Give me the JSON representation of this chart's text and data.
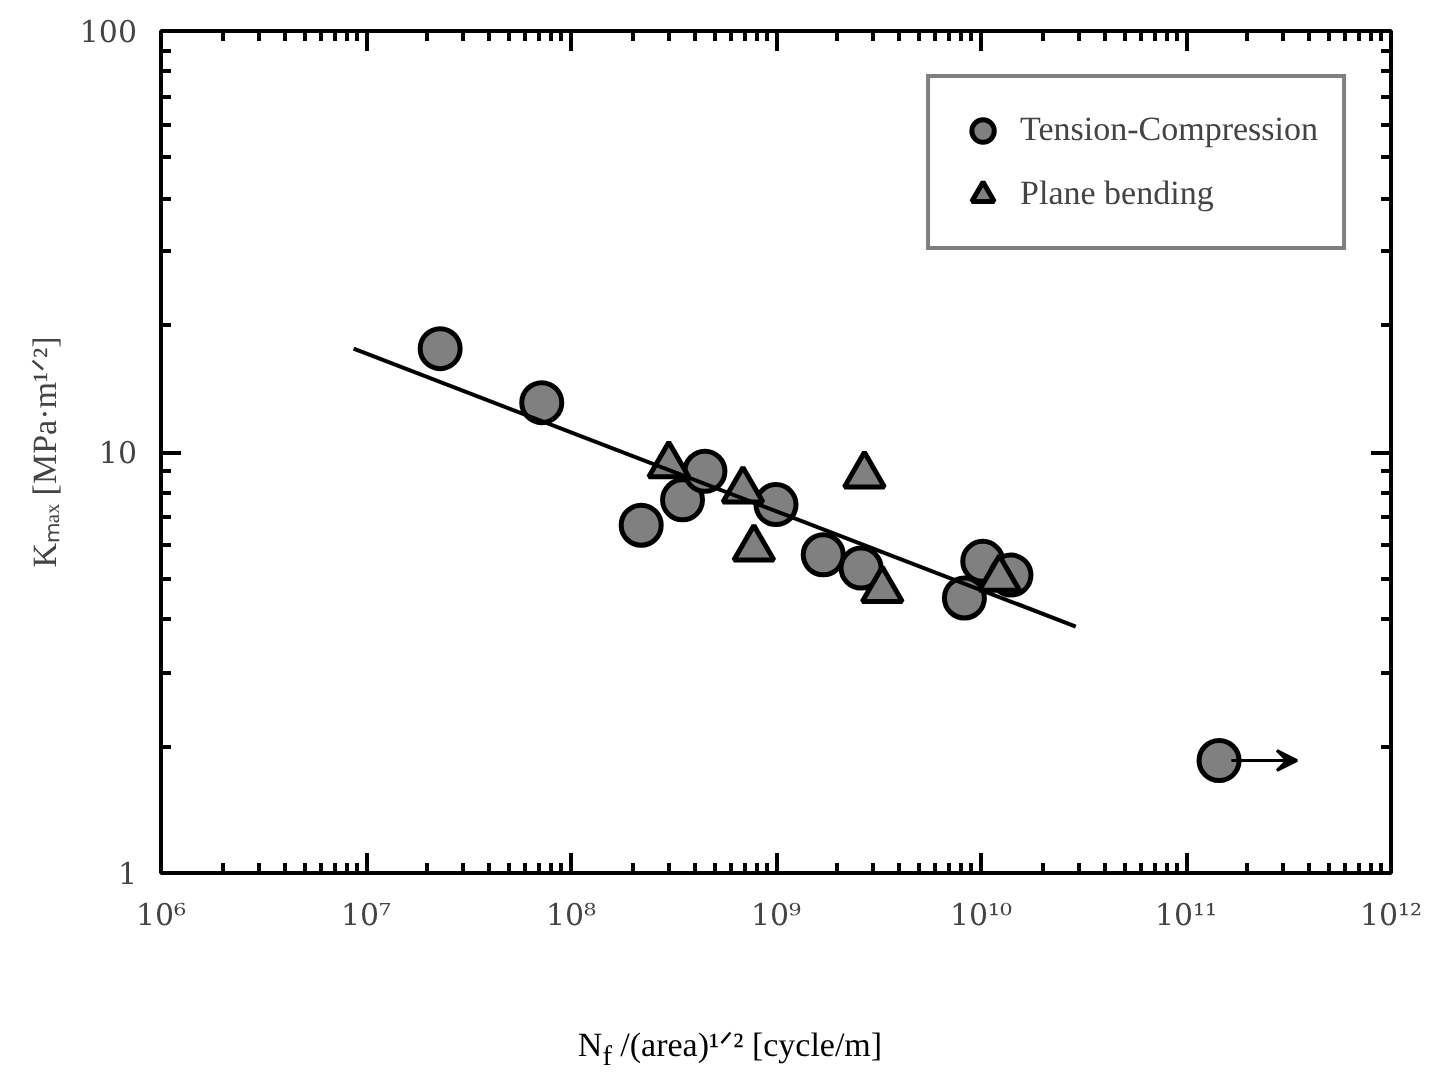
{
  "chart_data": {
    "type": "scatter",
    "xlabel": "N$_{f}$ /(area)¹ᐟ² [cycle/m]",
    "ylabel": "Kₘₐₓ [MPa·m¹ᐟ²]",
    "log": "xy",
    "grid": false,
    "legend": "top right",
    "xlim": [
      1000000,
      1000000000000
    ],
    "ylim": [
      1,
      100
    ],
    "xticks": [
      {
        "value": 1000000,
        "label": "10⁶"
      },
      {
        "value": 10000000,
        "label": "10⁷"
      },
      {
        "value": 100000000,
        "label": "10⁸"
      },
      {
        "value": 1000000000,
        "label": "10⁹"
      },
      {
        "value": 10000000000,
        "label": "10¹⁰"
      },
      {
        "value": 100000000000,
        "label": "10¹¹"
      },
      {
        "value": 1000000000000,
        "label": "10¹²"
      }
    ],
    "yticks": [
      1,
      10,
      100
    ],
    "series": [
      {
        "name": "Tension-Compression",
        "color": "#808080",
        "marker": "circle",
        "x": [
          23000000,
          72000000,
          220000000,
          350000000,
          450000000,
          1000000000,
          1700000000,
          2600000000,
          8300000000,
          10200000000,
          14000000000,
          145000000000
        ],
        "values": [
          17.6,
          13.1,
          6.7,
          7.7,
          9.0,
          7.5,
          5.7,
          5.3,
          4.5,
          5.5,
          5.1,
          1.85
        ]
      },
      {
        "name": "Plane bending",
        "color": "#808080",
        "marker": "triangle",
        "x": [
          300000000,
          690000000,
          780000000,
          2700000000,
          3300000000,
          12300000000
        ],
        "values": [
          9.3,
          8.1,
          5.9,
          8.8,
          4.7,
          5.0
        ]
      },
      {
        "type": "line",
        "color": "#000000",
        "x": [
          8700000,
          29000000000
        ],
        "values": [
          17.6,
          3.85
        ]
      }
    ]
  }
}
